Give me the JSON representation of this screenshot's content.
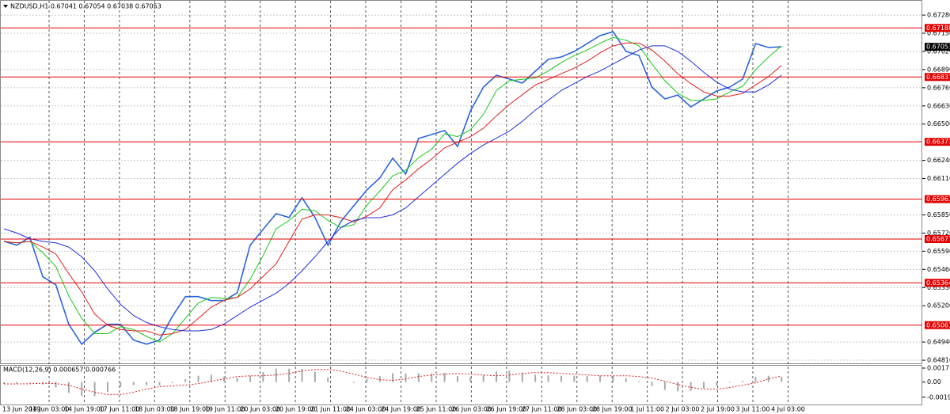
{
  "chart_data": [
    {
      "type": "line",
      "title": "NZDUSD,H1  0.67041 0.67054 0.67038 0.67053",
      "ylim": [
        0.64782,
        0.67388
      ],
      "yticks": [
        {
          "value": 0.6728,
          "label": "0.67280"
        },
        {
          "value": 0.6715,
          "label": "0.67150"
        },
        {
          "value": 0.6702,
          "label": "0.67020"
        },
        {
          "value": 0.6689,
          "label": "0.66890"
        },
        {
          "value": 0.6676,
          "label": "0.66760"
        },
        {
          "value": 0.6663,
          "label": "0.66630"
        },
        {
          "value": 0.665,
          "label": "0.66500"
        },
        {
          "value": 0.6624,
          "label": "0.66240"
        },
        {
          "value": 0.6611,
          "label": "0.66110"
        },
        {
          "value": 0.6585,
          "label": "0.65850"
        },
        {
          "value": 0.6572,
          "label": "0.65720"
        },
        {
          "value": 0.6559,
          "label": "0.65590"
        },
        {
          "value": 0.6546,
          "label": "0.65460"
        },
        {
          "value": 0.6533,
          "label": "0.65330"
        },
        {
          "value": 0.652,
          "label": "0.65200"
        },
        {
          "value": 0.6494,
          "label": "0.64940"
        },
        {
          "value": 0.6481,
          "label": "0.64810"
        }
      ],
      "grid": true,
      "xtick_labels": [
        "13 Jun 2019",
        "14 Jun 03:00",
        "14 Jun 19:00",
        "17 Jun 11:00",
        "18 Jun 03:00",
        "18 Jun 19:00",
        "19 Jun 11:00",
        "20 Jun 03:00",
        "20 Jun 19:00",
        "21 Jun 11:00",
        "24 Jun 03:00",
        "24 Jun 19:00",
        "25 Jun 11:00",
        "26 Jun 03:00",
        "26 Jun 19:00",
        "27 Jun 11:00",
        "28 Jun 03:00",
        "28 Jun 19:00",
        "1 Jul 11:00",
        "2 Jul 03:00",
        "2 Jul 19:00",
        "3 Jul 11:00",
        "4 Jul 03:00"
      ],
      "series": [
        {
          "color": "#2a64d8",
          "values": [
            0.65661,
            0.65633,
            0.6569,
            0.65407,
            0.6535,
            0.65067,
            0.64925,
            0.6501,
            0.65067,
            0.65067,
            0.64954,
            0.64925,
            0.64954,
            0.65124,
            0.65265,
            0.65265,
            0.65237,
            0.65237,
            0.65293,
            0.65633,
            0.65746,
            0.65859,
            0.65831,
            0.65973,
            0.65831,
            0.65633,
            0.65803,
            0.65916,
            0.66029,
            0.66114,
            0.66256,
            0.66142,
            0.66397,
            0.66425,
            0.66454,
            0.6634,
            0.66595,
            0.66765,
            0.6685,
            0.66822,
            0.66793,
            0.66878,
            0.66963,
            0.6698,
            0.6702,
            0.67076,
            0.67133,
            0.67161,
            0.6702,
            0.66991,
            0.66765,
            0.6668,
            0.66708,
            0.66623,
            0.6668,
            0.66737,
            0.66765,
            0.66822,
            0.67076,
            0.67048,
            0.67053
          ]
        },
        {
          "color": "#19c819",
          "values": [
            0.6566,
            0.6565,
            0.6566,
            0.6558,
            0.6548,
            0.6527,
            0.6511,
            0.65,
            0.65,
            0.6505,
            0.6503,
            0.6498,
            0.6494,
            0.65,
            0.6511,
            0.6522,
            0.6526,
            0.6525,
            0.6526,
            0.6539,
            0.6556,
            0.6575,
            0.6581,
            0.6589,
            0.6588,
            0.6581,
            0.6576,
            0.6578,
            0.6592,
            0.6602,
            0.6613,
            0.6617,
            0.6626,
            0.6632,
            0.6643,
            0.6641,
            0.6646,
            0.6657,
            0.6674,
            0.6681,
            0.6682,
            0.6683,
            0.6688,
            0.6694,
            0.6699,
            0.6703,
            0.6708,
            0.6712,
            0.671,
            0.6706,
            0.6693,
            0.6681,
            0.6672,
            0.6667,
            0.6667,
            0.6668,
            0.6673,
            0.6677,
            0.6689,
            0.6698,
            0.6706
          ]
        },
        {
          "color": "#e02020",
          "values": [
            0.6566,
            0.6565,
            0.6566,
            0.6562,
            0.6557,
            0.6543,
            0.653,
            0.6514,
            0.6506,
            0.6503,
            0.6502,
            0.6502,
            0.6499,
            0.65,
            0.6503,
            0.6511,
            0.6519,
            0.6524,
            0.6526,
            0.6532,
            0.6541,
            0.655,
            0.6566,
            0.6582,
            0.6585,
            0.6585,
            0.6583,
            0.658,
            0.6584,
            0.659,
            0.6603,
            0.661,
            0.6618,
            0.6625,
            0.6633,
            0.6637,
            0.6641,
            0.6647,
            0.6656,
            0.6664,
            0.6671,
            0.6678,
            0.6682,
            0.6686,
            0.669,
            0.6695,
            0.6701,
            0.6706,
            0.6708,
            0.6708,
            0.6703,
            0.6695,
            0.6686,
            0.6679,
            0.6673,
            0.667,
            0.667,
            0.6672,
            0.6678,
            0.6684,
            0.6692
          ]
        },
        {
          "color": "#2030e0",
          "values": [
            0.6575,
            0.6572,
            0.6568,
            0.6566,
            0.6565,
            0.6562,
            0.6555,
            0.6545,
            0.6532,
            0.6521,
            0.6513,
            0.6508,
            0.6505,
            0.6503,
            0.6502,
            0.6502,
            0.6503,
            0.6507,
            0.6513,
            0.6519,
            0.6524,
            0.6529,
            0.6536,
            0.6545,
            0.6555,
            0.6566,
            0.6576,
            0.6581,
            0.6583,
            0.6583,
            0.6585,
            0.659,
            0.6598,
            0.6606,
            0.6614,
            0.6622,
            0.6629,
            0.6635,
            0.664,
            0.6645,
            0.6652,
            0.666,
            0.6667,
            0.6674,
            0.6679,
            0.6684,
            0.6688,
            0.6693,
            0.6698,
            0.6703,
            0.6706,
            0.6706,
            0.6702,
            0.6695,
            0.6687,
            0.668,
            0.6675,
            0.6673,
            0.6673,
            0.6678,
            0.6685
          ]
        }
      ],
      "levels": [
        {
          "value": 0.67188,
          "label": "0.67188"
        },
        {
          "value": 0.66837,
          "label": "0.66837"
        },
        {
          "value": 0.66373,
          "label": "0.66373"
        },
        {
          "value": 0.65963,
          "label": "0.65963"
        },
        {
          "value": 0.65677,
          "label": "0.65677"
        },
        {
          "value": 0.65364,
          "label": "0.65364"
        },
        {
          "value": 0.65061,
          "label": "0.65061"
        }
      ],
      "level_color": "#e00000",
      "last_price": {
        "value": 0.67053,
        "label": "0.67053"
      }
    },
    {
      "type": "macd",
      "title": "MACD(12,26,9) 0.000657 0.000766",
      "ylim": [
        -0.00297,
        0.00208
      ],
      "yticks": [
        0.001779,
        {
          "value": 0,
          "label": "0.00"
        },
        -0.001939
      ],
      "histogram": {
        "color": "#a8a8a8",
        "values": [
          -0.00024,
          -0.0002,
          -8e-05,
          -0.00032,
          -0.00068,
          -0.0014,
          -0.00176,
          -0.0018,
          -0.00128,
          -0.00064,
          -0.0004,
          -0.0004,
          -0.00044,
          -0.00012,
          0.00036,
          0.0008,
          0.00092,
          0.00072,
          0.00052,
          0.0008,
          0.00128,
          0.00172,
          0.0017,
          0.00168,
          0.00132,
          0.0006,
          0,
          -0.00012,
          0.00036,
          0.00076,
          0.00112,
          0.00108,
          0.00112,
          0.00104,
          0.00116,
          0.00076,
          0.00068,
          0.00088,
          0.00136,
          0.00144,
          0.0012,
          0.00092,
          0.00084,
          0.0008,
          0.0008,
          0.00076,
          0.0008,
          0.00076,
          0.00048,
          0.00012,
          -0.00052,
          -0.001,
          -0.0012,
          -0.00112,
          -0.0008,
          -0.00048,
          -8e-05,
          0.00016,
          0.00064,
          0.0008,
          0.000657
        ]
      },
      "signal": {
        "color": "#e02020",
        "values": [
          -0.00024,
          -0.00024,
          -0.00022,
          -0.00016,
          -0.0002,
          -0.0004,
          -0.0009,
          -0.0013,
          -0.0016,
          -0.0016,
          -0.0013,
          -0.0009,
          -0.0006,
          -0.0005,
          -0.0004,
          -0.0002,
          0.0001,
          0.0004,
          0.0007,
          0.0008,
          0.0008,
          0.0009,
          0.0011,
          0.0014,
          0.0016,
          0.0016,
          0.0014,
          0.001,
          0.0006,
          0.0003,
          0.0002,
          0.0004,
          0.0007,
          0.0009,
          0.001,
          0.0011,
          0.001,
          0.0009,
          0.0008,
          0.0009,
          0.0011,
          0.0012,
          0.0012,
          0.0011,
          0.001,
          0.0009,
          0.0008,
          0.0008,
          0.0008,
          0.0007,
          0.0005,
          0.0001,
          -0.0003,
          -0.0007,
          -0.0009,
          -0.0009,
          -0.0007,
          -0.0004,
          -0.0001,
          0.0004,
          0.000766
        ]
      }
    }
  ]
}
